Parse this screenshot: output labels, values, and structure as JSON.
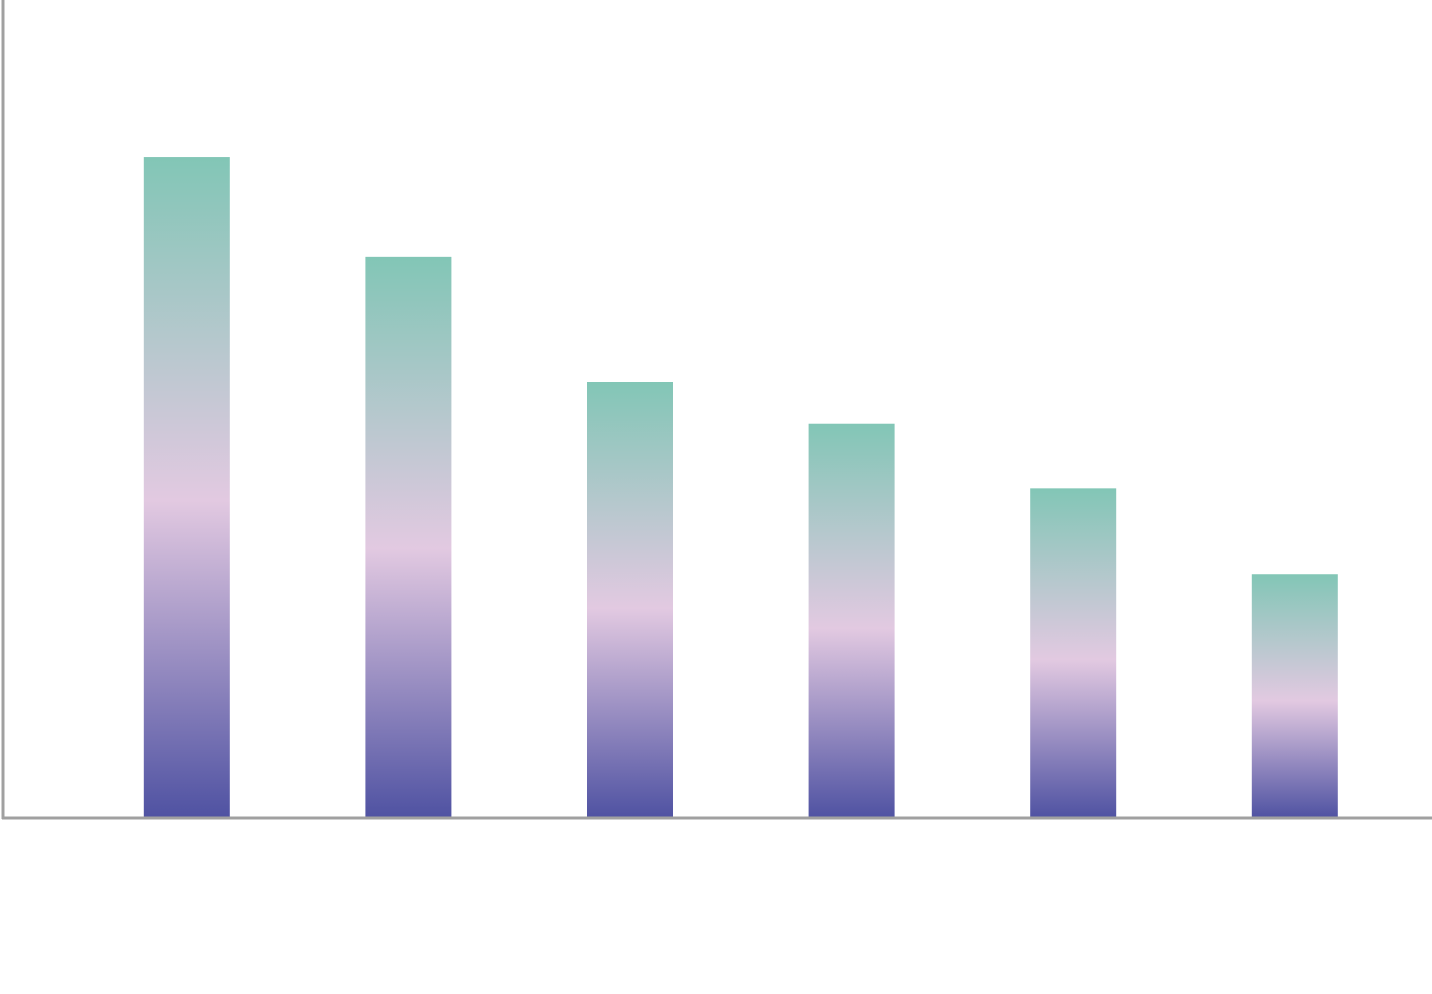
{
  "chart_data": {
    "type": "bar",
    "categories": [
      null,
      null,
      null,
      null,
      null,
      null
    ],
    "values": [
      80.8,
      68.6,
      53.3,
      48.2,
      40.3,
      29.8
    ],
    "gradient": [
      "#82c6b6",
      "#e2c9e1",
      "#4f52a2"
    ],
    "ylim": [
      0,
      100
    ]
  }
}
